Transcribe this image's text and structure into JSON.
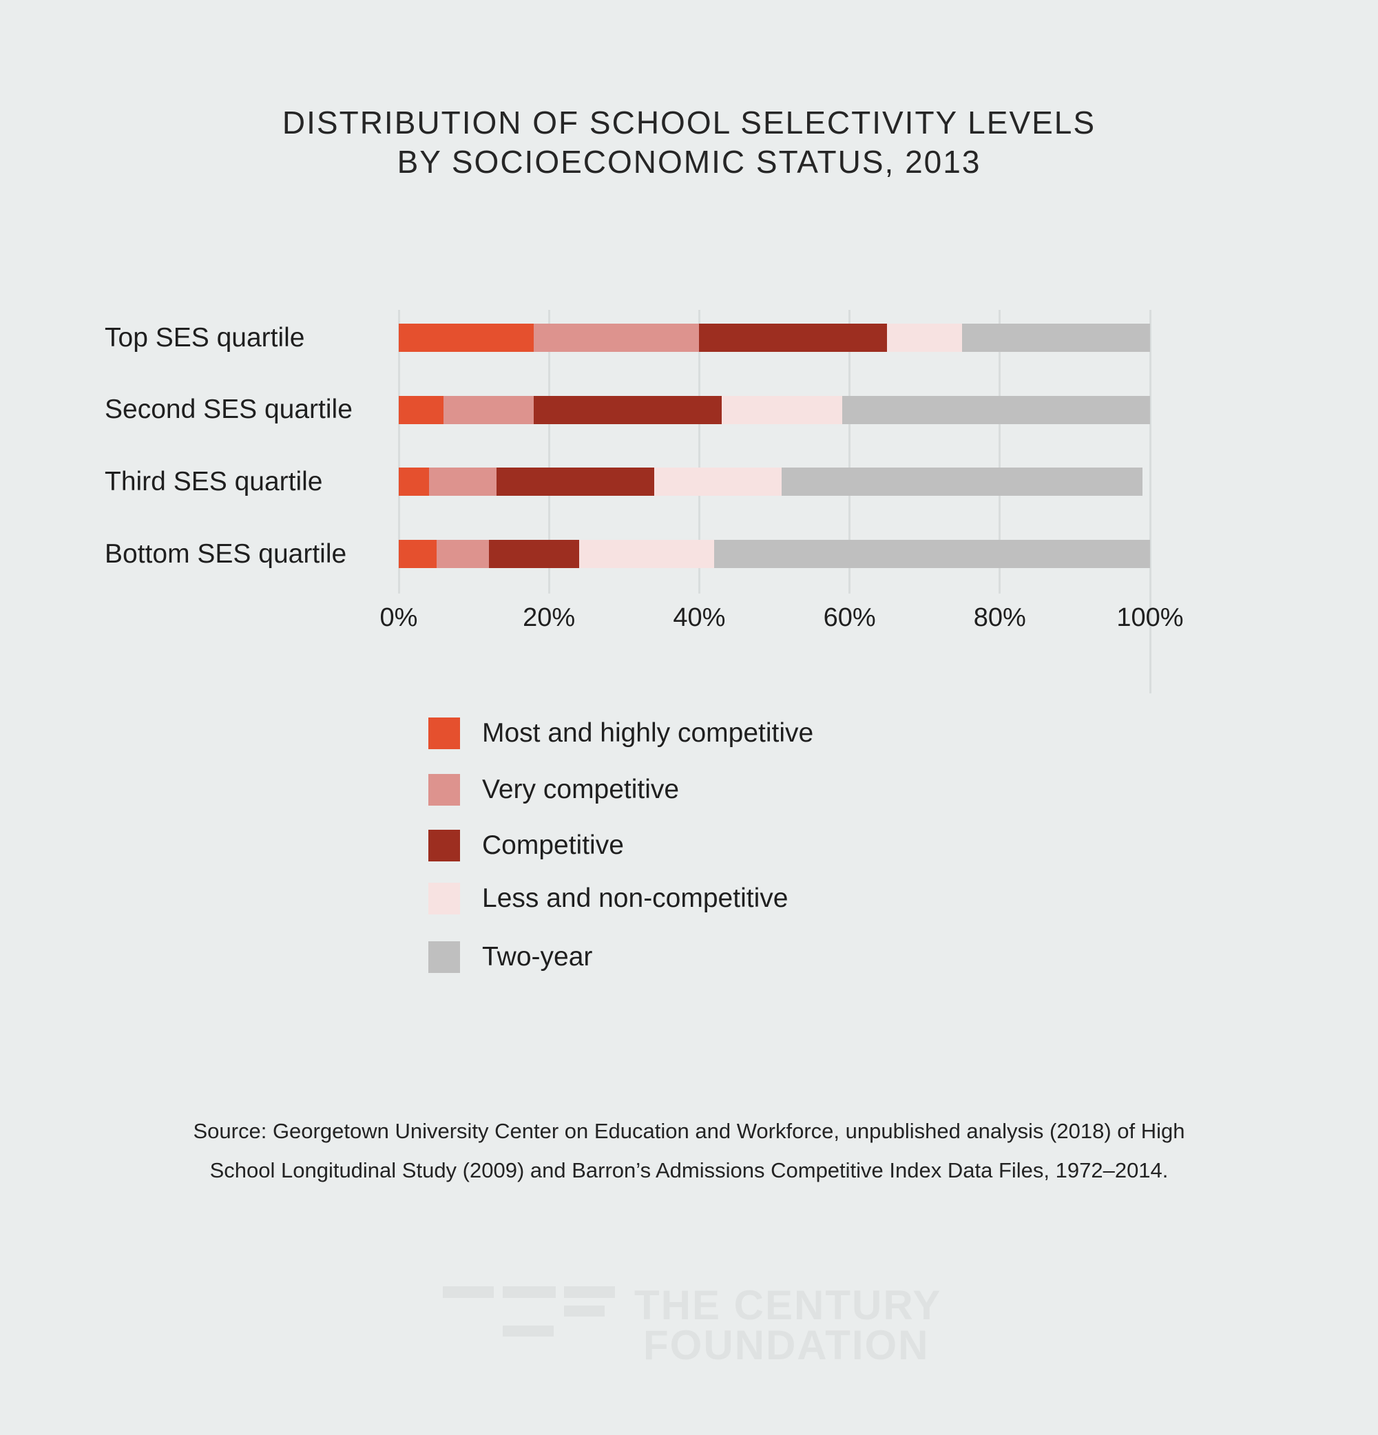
{
  "page": {
    "background_color": "#EAEDED",
    "text_color": "#1F1F1F",
    "gridline_color": "#D9DDDD",
    "logo_color": "#DFE2E2"
  },
  "title": {
    "line1": "DISTRIBUTION OF SCHOOL SELECTIVITY LEVELS",
    "line2": "BY SOCIOECONOMIC STATUS, 2013"
  },
  "chart_data": {
    "type": "bar",
    "orientation": "horizontal",
    "stacked": true,
    "title": "DISTRIBUTION OF SCHOOL SELECTIVITY LEVELS BY SOCIOECONOMIC STATUS, 2013",
    "units": "percent",
    "categories": [
      "Top SES quartile",
      "Second SES quartile",
      "Third SES quartile",
      "Bottom SES quartile"
    ],
    "series": [
      {
        "name": "Most and highly competitive",
        "color": "#E5502E",
        "values": [
          18,
          6,
          4,
          5
        ]
      },
      {
        "name": "Very competitive",
        "color": "#DD938E",
        "values": [
          22,
          12,
          9,
          7
        ]
      },
      {
        "name": "Competitive",
        "color": "#9D2E20",
        "values": [
          25,
          25,
          21,
          12
        ]
      },
      {
        "name": "Less and non-competitive",
        "color": "#F7E2E1",
        "values": [
          10,
          16,
          17,
          18
        ]
      },
      {
        "name": "Two-year",
        "color": "#BFBFBF",
        "values": [
          25,
          41,
          48,
          58
        ]
      }
    ],
    "x_ticks": [
      "0%",
      "20%",
      "40%",
      "60%",
      "80%",
      "100%"
    ],
    "xlim": [
      0,
      100
    ],
    "grid": true,
    "legend_position": "below-left"
  },
  "source": {
    "lines": [
      "Source:  Georgetown University Center on Education and Workforce, unpublished analysis (2018) of High",
      "School Longitudinal Study (2009) and Barron’s Admissions Competitive Index Data Files, 1972–2014."
    ]
  },
  "logo": {
    "mark": "tcf-dashes-mark",
    "line1": "THE CENTURY",
    "line2": "FOUNDATION"
  }
}
